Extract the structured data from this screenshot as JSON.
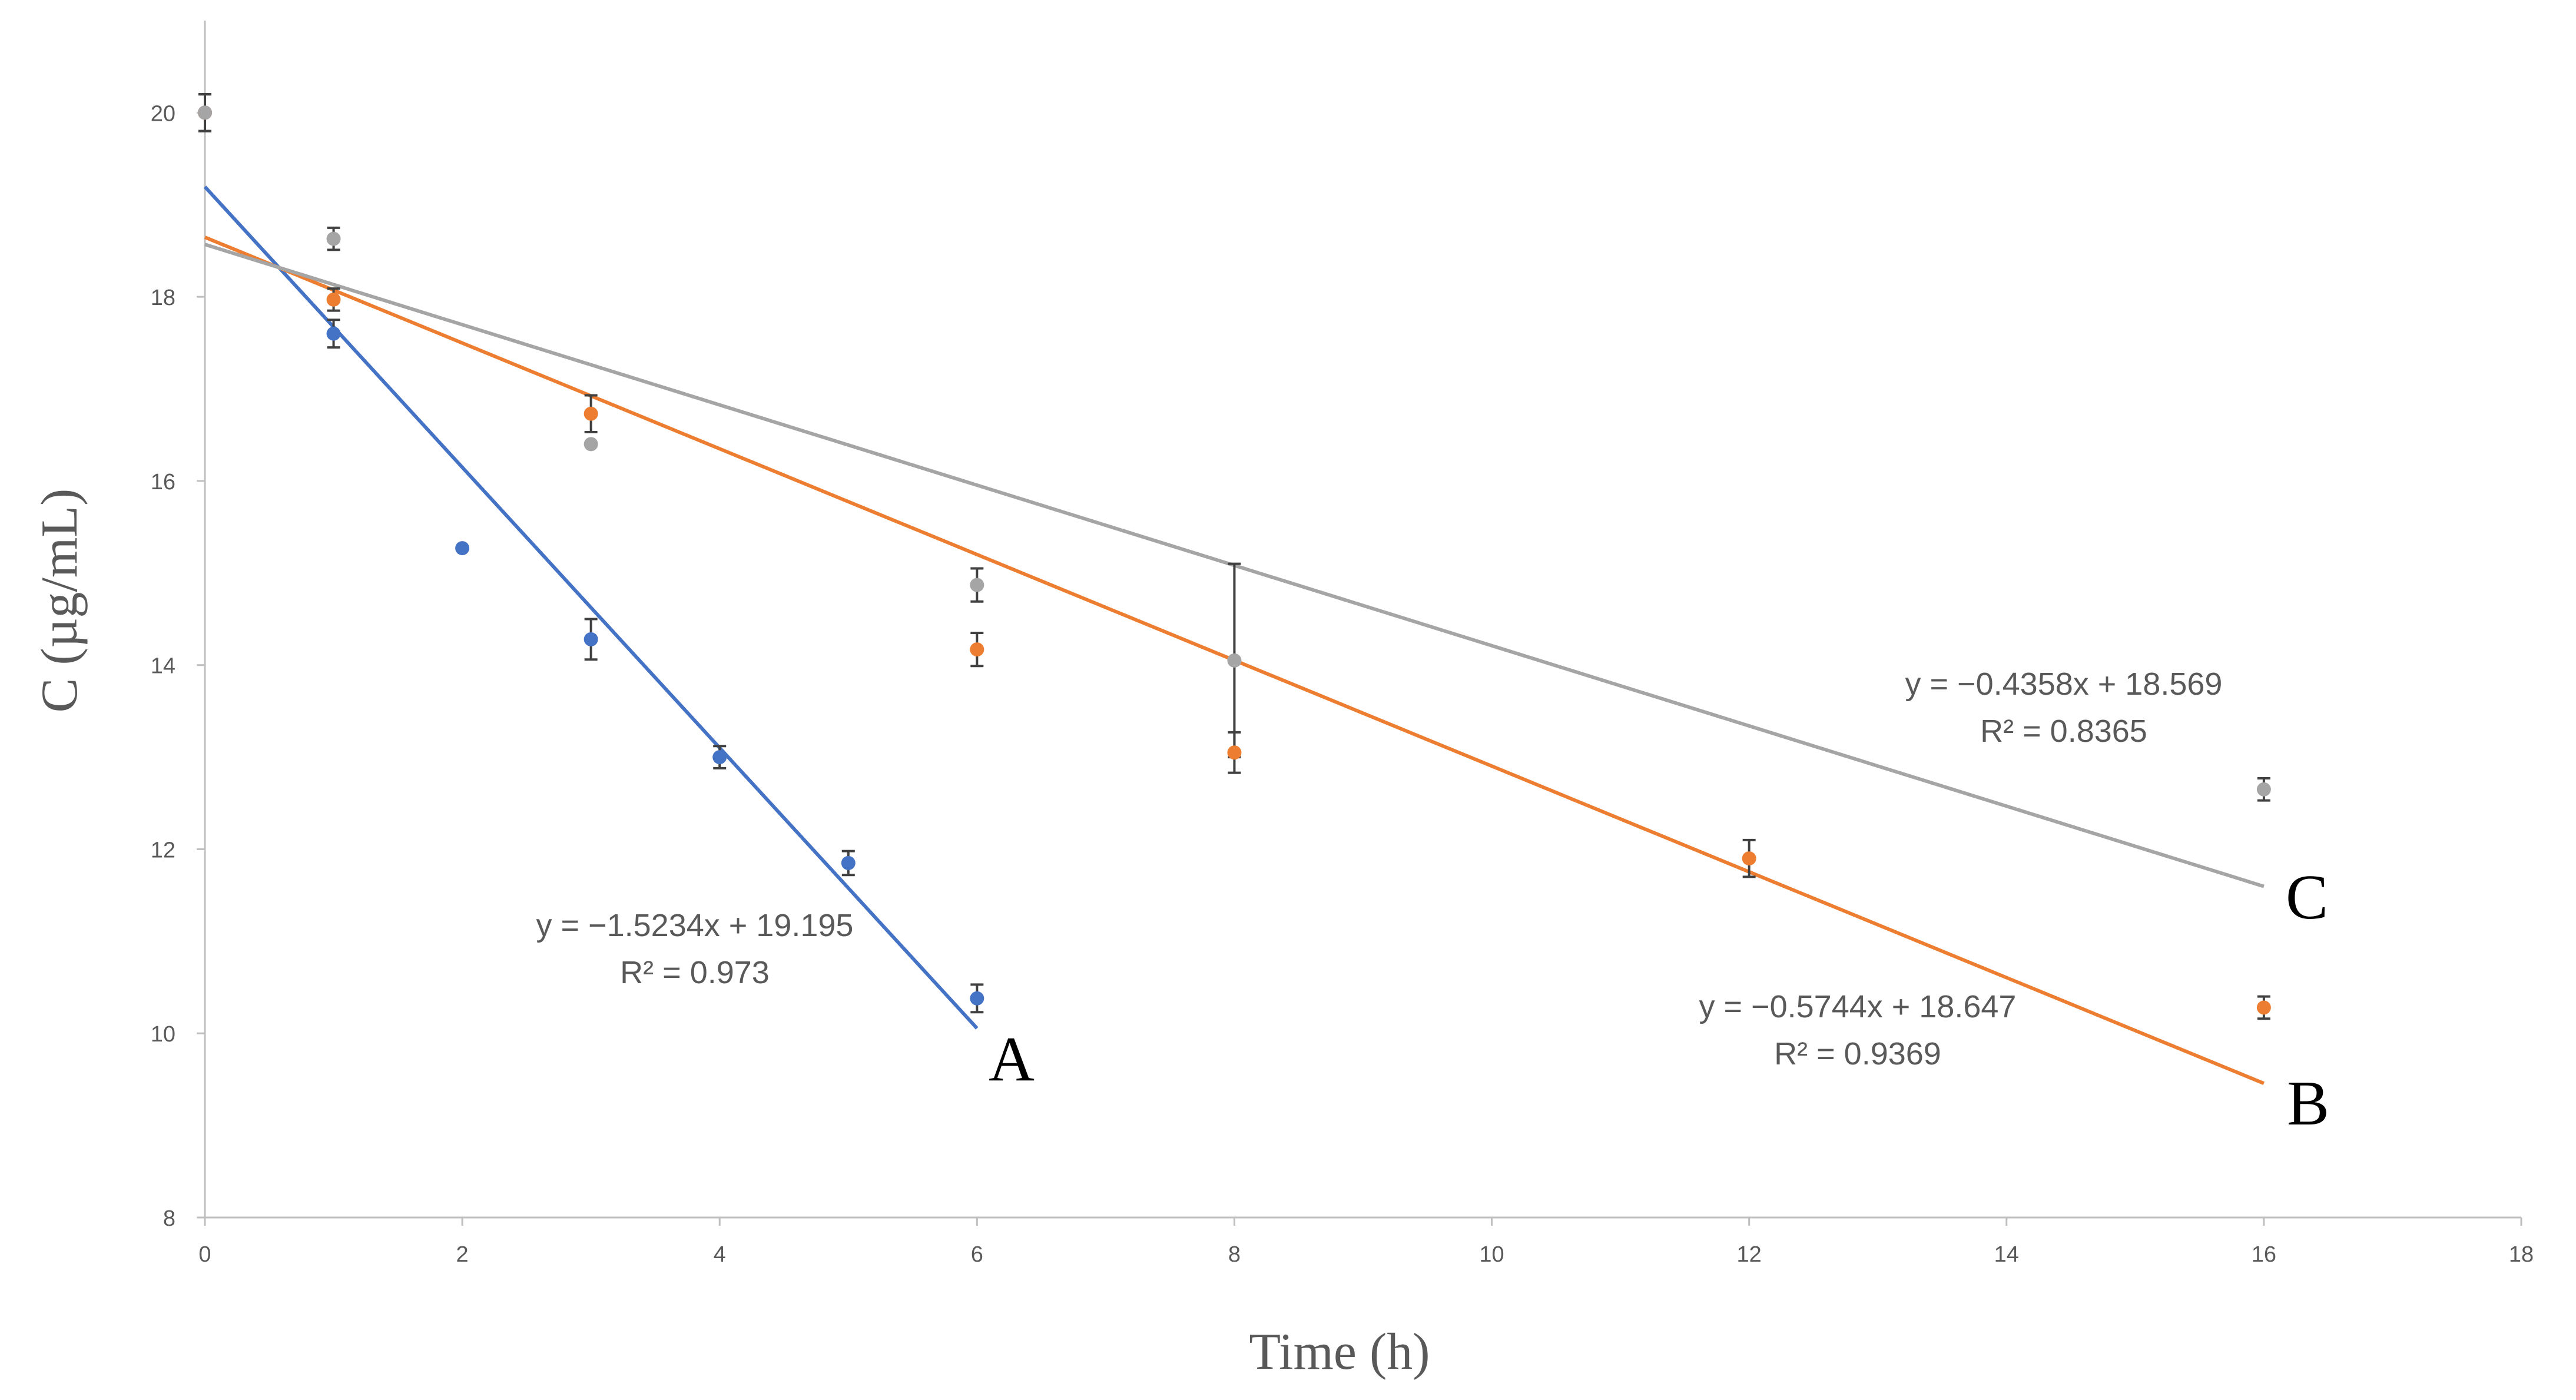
{
  "chart_data": {
    "type": "scatter",
    "title": "",
    "xlabel": "Time (h)",
    "ylabel": "C (µg/mL)",
    "xlim": [
      0,
      18
    ],
    "ylim": [
      8,
      21
    ],
    "xticks": [
      "0",
      "2",
      "4",
      "6",
      "8",
      "10",
      "12",
      "14",
      "16",
      "18"
    ],
    "yticks": [
      "8",
      "10",
      "12",
      "14",
      "16",
      "18",
      "20"
    ],
    "grid": false,
    "series": [
      {
        "name": "A",
        "color": "#4472C4",
        "x": [
          0,
          1,
          2,
          3,
          4,
          5,
          6
        ],
        "y": [
          20.0,
          17.6,
          15.27,
          14.28,
          13.0,
          11.85,
          10.38
        ],
        "err": [
          0.2,
          0.15,
          0,
          0.22,
          0.12,
          0.13,
          0.15
        ],
        "trendline": {
          "slope": -1.5234,
          "intercept": 19.195,
          "x_range": [
            0,
            6
          ]
        },
        "equation": "y = −1.5234x + 19.195",
        "r2": "R² = 0.973",
        "label": "A"
      },
      {
        "name": "B",
        "color": "#ED7D31",
        "x": [
          0,
          1,
          3,
          6,
          8,
          12,
          16
        ],
        "y": [
          20.0,
          17.97,
          16.73,
          14.17,
          13.05,
          11.9,
          10.28
        ],
        "err": [
          0.2,
          0.12,
          0.2,
          0.18,
          0.22,
          0.2,
          0.12
        ],
        "trendline": {
          "slope": -0.5744,
          "intercept": 18.647,
          "x_range": [
            0,
            16
          ]
        },
        "equation": "y = −0.5744x + 18.647",
        "r2": "R² = 0.9369",
        "label": "B"
      },
      {
        "name": "C",
        "color": "#A5A5A5",
        "x": [
          0,
          1,
          3,
          6,
          8,
          16
        ],
        "y": [
          20.0,
          18.63,
          16.4,
          14.87,
          14.05,
          12.65
        ],
        "err": [
          0.2,
          0.12,
          0,
          0.18,
          1.05,
          0.12
        ],
        "trendline": {
          "slope": -0.4358,
          "intercept": 18.569,
          "x_range": [
            0,
            16
          ]
        },
        "equation": "y = −0.4358x + 18.569",
        "r2": "R² = 0.8365",
        "label": "C"
      }
    ]
  }
}
